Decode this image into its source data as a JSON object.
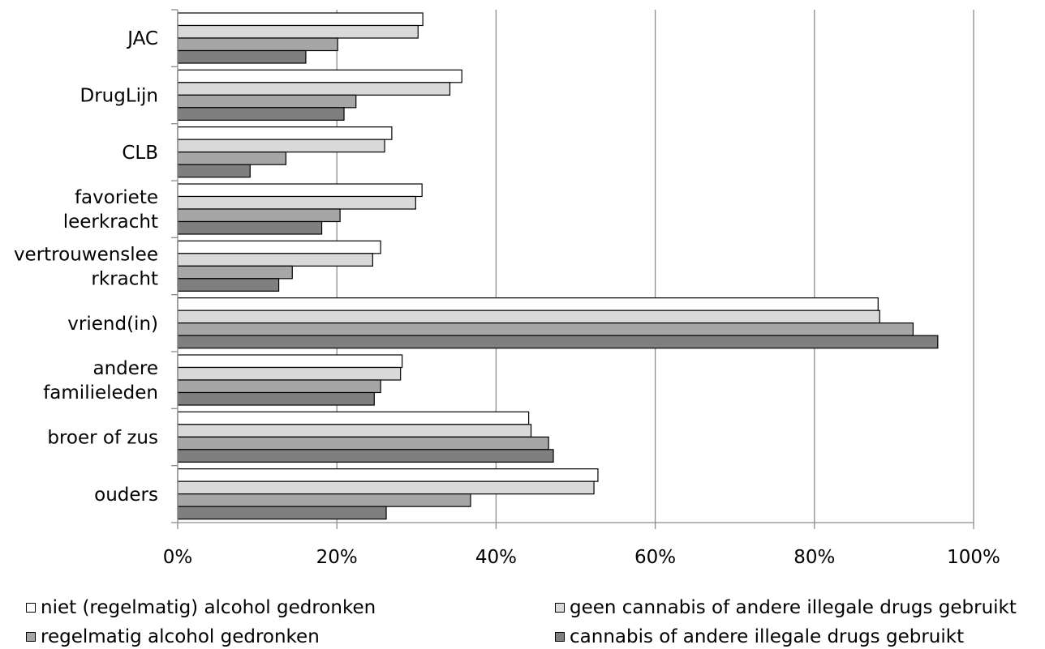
{
  "chart_data": {
    "type": "bar",
    "orientation": "horizontal",
    "categories": [
      [
        "JAC"
      ],
      [
        "DrugLijn"
      ],
      [
        "CLB"
      ],
      [
        "favoriete",
        "leerkracht"
      ],
      [
        "vertrouwenslee",
        "rkracht"
      ],
      [
        "vriend(in)"
      ],
      [
        "andere",
        "familieleden"
      ],
      [
        "broer of zus"
      ],
      [
        "ouders"
      ]
    ],
    "series": [
      {
        "name": "niet (regelmatig) alcohol gedronken",
        "color": "#ffffff",
        "values": [
          30.8,
          35.7,
          26.9,
          30.7,
          25.5,
          88.0,
          28.2,
          44.1,
          52.8
        ]
      },
      {
        "name": "geen cannabis of andere illegale drugs gebruikt",
        "color": "#d9d9d9",
        "values": [
          30.2,
          34.2,
          26.0,
          29.9,
          24.5,
          88.2,
          28.0,
          44.4,
          52.3
        ]
      },
      {
        "name": "regelmatig alcohol gedronken",
        "color": "#a6a6a6",
        "values": [
          20.1,
          22.4,
          13.6,
          20.4,
          14.4,
          92.4,
          25.5,
          46.6,
          36.8
        ]
      },
      {
        "name": "cannabis of andere illegale drugs gebruikt",
        "color": "#7f7f7f",
        "values": [
          16.1,
          20.9,
          9.1,
          18.1,
          12.7,
          95.5,
          24.7,
          47.2,
          26.2
        ]
      }
    ],
    "xlim": [
      0,
      100
    ],
    "xticks": [
      "0%",
      "20%",
      "40%",
      "60%",
      "80%",
      "100%"
    ],
    "grid": true,
    "legend_position": "bottom",
    "title": "",
    "xlabel": "",
    "ylabel": ""
  }
}
